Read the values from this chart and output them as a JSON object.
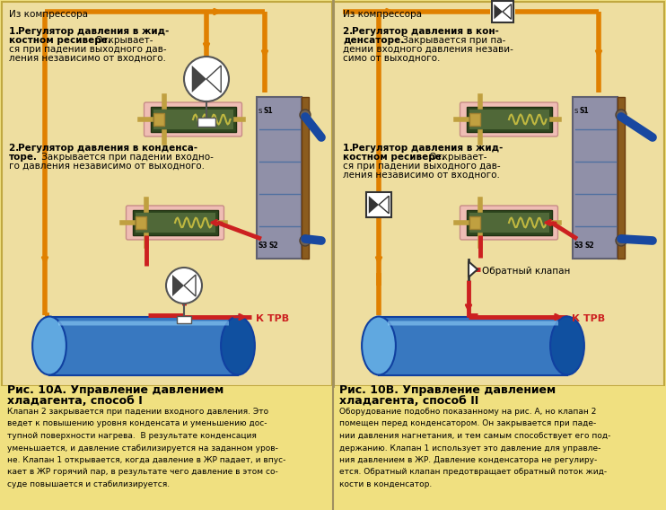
{
  "bg_color": "#f0e080",
  "panel_color": "#f0dea0",
  "orange": "#e08000",
  "orange_arrow": "#e87800",
  "red": "#cc2020",
  "blue_pipe": "#1848a0",
  "blue_tank": "#3878c0",
  "blue_tank_light": "#60a8e0",
  "blue_tank_dark": "#1050a0",
  "brown_cond": "#8b5c1e",
  "gray_cond": "#9090a8",
  "gray_cond2": "#b0b0c0",
  "black": "#000000",
  "white": "#ffffff",
  "pink": "#f0b0b0",
  "green_spring": "#408040",
  "title_a": "Рис. 10А. Управление давлением\nхладагента, способ I",
  "title_b": "Рис. 10В. Управление давлением\nхладагента, способ II",
  "caption_a_lines": [
    "Клапан 2 закрывается при падении входного давления. Это",
    "ведет к повышению уровня конденсата и уменьшению дос-",
    "тупной поверхности нагрева.  В результате конденсация",
    "уменьшается, и давление стабилизируется на заданном уров-",
    "не. Клапан 1 открывается, когда давление в ЖР падает, и впус-",
    "кает в ЖР горячий пар, в результате чего давление в этом со-",
    "суде повышается и стабилизируется."
  ],
  "caption_b_lines": [
    "Оборудование подобно показанному на рис. А, но клапан 2",
    "помещен перед конденсатором. Он закрывается при паде-",
    "нии давления нагнетания, и тем самым способствует его под-",
    "держанию. Клапан 1 использует это давление для управле-",
    "ния давлением в ЖР. Давление конденсатора не регулиру-",
    "ется. Обратный клапан предотвращает обратный поток жид-",
    "кости в конденсатор."
  ],
  "label_from_compressor": "Из компрессора",
  "label_to_trv": "К ТРВ",
  "label_check_valve": "Обратный клапан",
  "label1a_lines": [
    "1.  Регулятор давления в жид-",
    "костном ресивере.",
    " Открывает-",
    "ся при падении выходного дав-",
    "ления независимо от входного."
  ],
  "label2a_lines": [
    "2.  Регулятор давления в конденса-",
    "торе.",
    " Закрывается при падении входно-",
    "го давления независимо от выходного."
  ],
  "label1b_lines": [
    "1.  Регулятор давления в жид-",
    "костном ресивере.",
    " Открывает-",
    "ся при падении выходного дав-",
    "ления независимо от входного."
  ],
  "label2b_lines": [
    "2.  Регулятор давления в кон-",
    "денсаторе.",
    " Закрывается при па-",
    "дении входного давления незави-",
    "симо от выходного."
  ]
}
